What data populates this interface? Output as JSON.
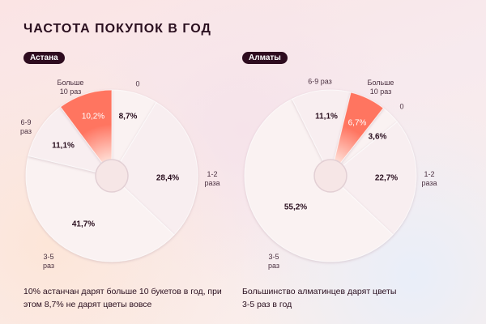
{
  "title": "ЧАСТОТА ПОКУПОК В ГОД",
  "colors": {
    "highlight": "#ff7460",
    "slice": "#f9f0f1",
    "text": "#2a0f1f",
    "badge": "#2e0c1f"
  },
  "chart_data": [
    {
      "type": "pie",
      "title": "Астана",
      "unit": "%",
      "highlight": "Больше 10 раз",
      "slices": [
        {
          "category": "0",
          "label": "0",
          "value": 8.7,
          "value_label": "8,7%"
        },
        {
          "category": "1-2 раза",
          "label": "1-2\nраза",
          "value": 28.4,
          "value_label": "28,4%"
        },
        {
          "category": "3-5 раз",
          "label": "3-5\nраз",
          "value": 41.7,
          "value_label": "41,7%"
        },
        {
          "category": "6-9 раз",
          "label": "6-9\nраз",
          "value": 11.1,
          "value_label": "11,1%"
        },
        {
          "category": "Больше 10 раз",
          "label": "Больше\n10 раз",
          "value": 10.2,
          "value_label": "10,2%"
        }
      ],
      "note": "10% астанчан дарят больше 10 букетов в год, при этом 8,7% не дарят цветы вовсе"
    },
    {
      "type": "pie",
      "title": "Алматы",
      "unit": "%",
      "highlight": "Больше 10 раз",
      "slices": [
        {
          "category": "0",
          "label": "0",
          "value": 3.6,
          "value_label": "3,6%"
        },
        {
          "category": "1-2 раза",
          "label": "1-2\nраза",
          "value": 22.7,
          "value_label": "22,7%"
        },
        {
          "category": "3-5 раз",
          "label": "3-5\nраз",
          "value": 55.2,
          "value_label": "55,2%"
        },
        {
          "category": "6-9 раз",
          "label": "6-9 раз",
          "value": 11.1,
          "value_label": "11,1%"
        },
        {
          "category": "Больше 10 раз",
          "label": "Больше\n10 раз",
          "value": 6.7,
          "value_label": "6,7%"
        }
      ],
      "note": "Большинство алматинцев дарят цветы 3-5 раз в год"
    }
  ]
}
